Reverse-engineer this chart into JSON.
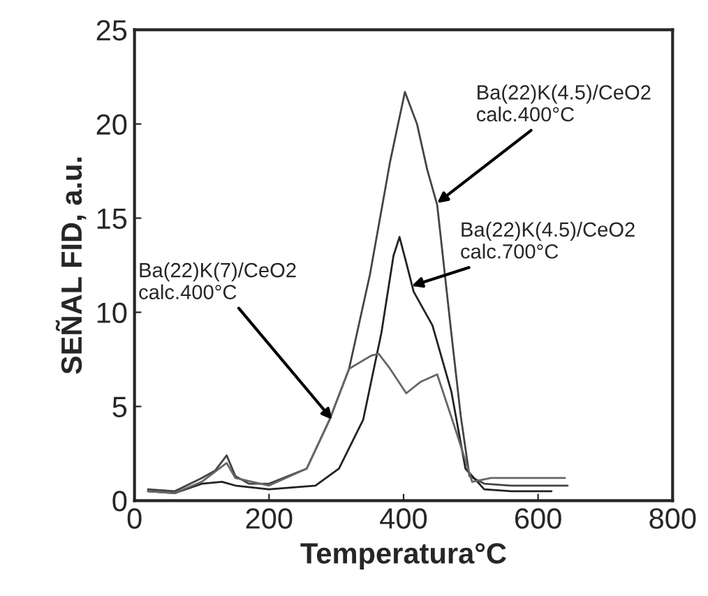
{
  "chart_data": {
    "type": "line",
    "xlabel": "Temperatura°C",
    "ylabel": "SEÑAL FID, a.u.",
    "xlim": [
      0,
      800
    ],
    "ylim": [
      0,
      25
    ],
    "xticks": [
      0,
      200,
      400,
      600,
      800
    ],
    "yticks": [
      0,
      5,
      10,
      15,
      20,
      25
    ],
    "grid": false,
    "line_style": "solid",
    "marker": "none",
    "series": [
      {
        "color": "#444444",
        "x": [
          20,
          60,
          100,
          120,
          137,
          150,
          170,
          200,
          256,
          290,
          319,
          350,
          380,
          402,
          420,
          435,
          450,
          471,
          485,
          498,
          520,
          560,
          600,
          644
        ],
        "values": [
          0.6,
          0.5,
          1.2,
          1.6,
          2.4,
          1.3,
          0.9,
          0.9,
          1.7,
          4.3,
          7.0,
          12.0,
          18.0,
          21.7,
          20.0,
          17.6,
          15.7,
          8.9,
          4.5,
          1.3,
          0.9,
          0.8,
          0.8,
          0.8
        ]
      },
      {
        "color": "#222222",
        "x": [
          20,
          60,
          100,
          130,
          150,
          200,
          269,
          304,
          340,
          367,
          385,
          394,
          405,
          415,
          443,
          471,
          492,
          520,
          560,
          620
        ],
        "values": [
          0.5,
          0.4,
          0.9,
          1.0,
          0.8,
          0.6,
          0.8,
          1.7,
          4.3,
          8.9,
          13.0,
          14.0,
          12.5,
          11.1,
          9.3,
          5.8,
          1.7,
          0.6,
          0.5,
          0.5
        ]
      },
      {
        "color": "#666666",
        "x": [
          20,
          60,
          100,
          137,
          150,
          200,
          256,
          290,
          319,
          352,
          363,
          380,
          404,
          425,
          450,
          477,
          502,
          530,
          580,
          640
        ],
        "values": [
          0.5,
          0.4,
          1.0,
          2.0,
          1.2,
          0.8,
          1.7,
          4.3,
          7.0,
          7.7,
          7.8,
          7.0,
          5.7,
          6.3,
          6.7,
          3.8,
          1.0,
          1.2,
          1.2,
          1.2
        ]
      }
    ],
    "annotations": [
      {
        "text": "Ba(22)K(4.5)/CeO2\ncalc.400°C",
        "x": 450,
        "y": 15.8
      },
      {
        "text": "Ba(22)K(4.5)/CeO2\ncalc.700°C",
        "x": 412,
        "y": 11.4
      },
      {
        "text": "Ba(22)K(7)/CeO2\ncalc.400°C",
        "x": 294,
        "y": 4.3
      }
    ]
  }
}
